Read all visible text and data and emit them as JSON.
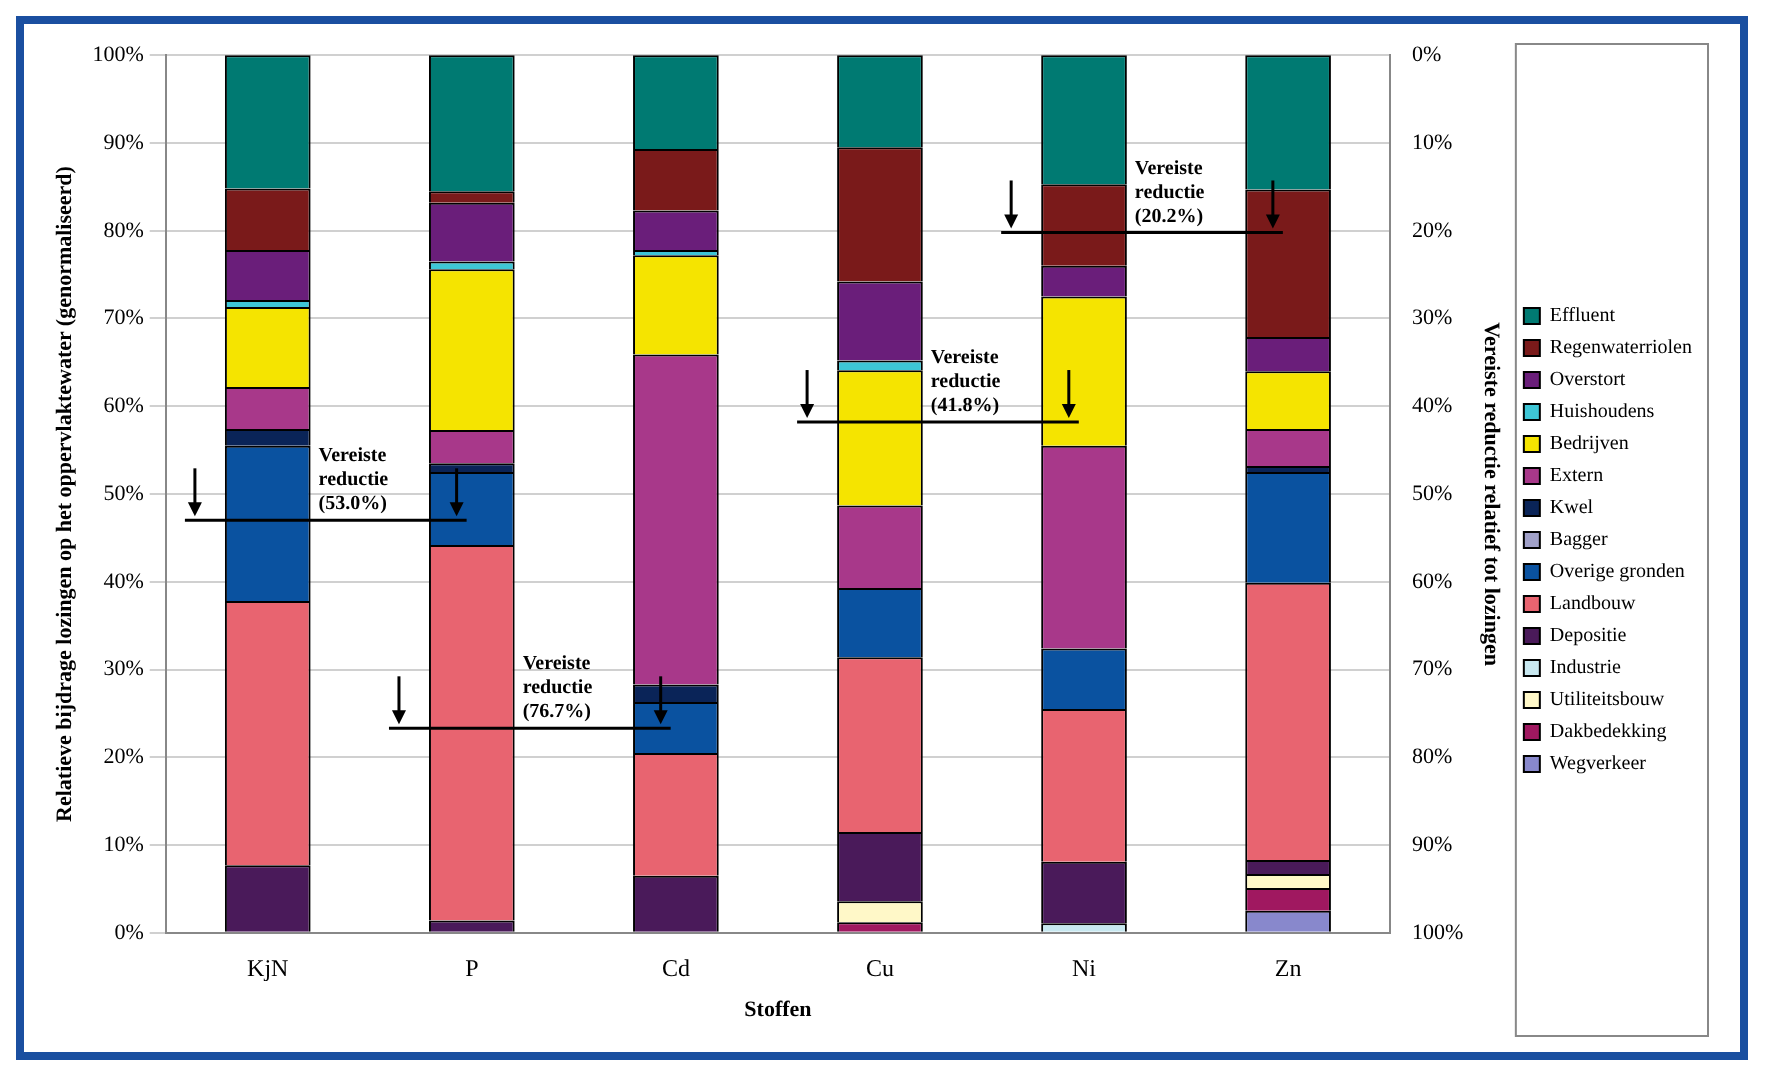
{
  "chart_data": {
    "type": "bar",
    "stacked": true,
    "xlabel": "Stoffen",
    "ylabel": "Relatieve bijdrage lozingen op het oppervlaktewater (genormaliseerd)",
    "y2label": "Vereiste reductie relatief tot lozingen",
    "categories": [
      "KjN",
      "P",
      "Cd",
      "Cu",
      "Ni",
      "Zn"
    ],
    "ylim": [
      0,
      100
    ],
    "yticks": [
      {
        "value": 0,
        "label": "0%"
      },
      {
        "value": 10,
        "label": "10%"
      },
      {
        "value": 20,
        "label": "20%"
      },
      {
        "value": 30,
        "label": "30%"
      },
      {
        "value": 40,
        "label": "40%"
      },
      {
        "value": 50,
        "label": "50%"
      },
      {
        "value": 60,
        "label": "60%"
      },
      {
        "value": 70,
        "label": "70%"
      },
      {
        "value": 80,
        "label": "80%"
      },
      {
        "value": 90,
        "label": "90%"
      },
      {
        "value": 100,
        "label": "100%"
      }
    ],
    "y2lim": [
      100,
      0
    ],
    "y2ticks": [
      {
        "value": 0,
        "label": "0%"
      },
      {
        "value": 10,
        "label": "10%"
      },
      {
        "value": 20,
        "label": "20%"
      },
      {
        "value": 30,
        "label": "30%"
      },
      {
        "value": 40,
        "label": "40%"
      },
      {
        "value": 50,
        "label": "50%"
      },
      {
        "value": 60,
        "label": "60%"
      },
      {
        "value": 70,
        "label": "70%"
      },
      {
        "value": 80,
        "label": "80%"
      },
      {
        "value": 90,
        "label": "90%"
      },
      {
        "value": 100,
        "label": "100%"
      }
    ],
    "grid": "y",
    "legend": "right",
    "series": [
      {
        "name": "Wegverkeer",
        "color": "#8888cc",
        "values": [
          0,
          0,
          0,
          0,
          0,
          2.5
        ]
      },
      {
        "name": "Dakbedekking",
        "color": "#a01860",
        "values": [
          0,
          0,
          0,
          1.2,
          0,
          2.6
        ]
      },
      {
        "name": "Utiliteitsbouw",
        "color": "#fff8c8",
        "values": [
          0,
          0,
          0,
          2.4,
          0,
          1.6
        ]
      },
      {
        "name": "Industrie",
        "color": "#c8e8f0",
        "values": [
          0,
          0,
          0,
          0,
          1.1,
          0
        ]
      },
      {
        "name": "Depositie",
        "color": "#4a1a5a",
        "values": [
          7.7,
          1.4,
          6.5,
          7.9,
          7.0,
          1.6
        ]
      },
      {
        "name": "Landbouw",
        "color": "#e86470",
        "values": [
          30.1,
          42.8,
          14.0,
          19.9,
          17.4,
          31.6
        ]
      },
      {
        "name": "Overige gronden",
        "color": "#0a52a0",
        "values": [
          17.7,
          8.3,
          5.8,
          7.9,
          6.9,
          12.6
        ]
      },
      {
        "name": "Bagger",
        "color": "#a0a0c8",
        "values": [
          0,
          0,
          0,
          0,
          0,
          0
        ]
      },
      {
        "name": "Kwel",
        "color": "#0a2458",
        "values": [
          1.9,
          1.0,
          2.0,
          0,
          0,
          0.7
        ]
      },
      {
        "name": "Extern",
        "color": "#a8388a",
        "values": [
          4.8,
          3.8,
          37.6,
          9.4,
          23.1,
          4.2
        ]
      },
      {
        "name": "Bedrijven",
        "color": "#f5e400",
        "values": [
          9.1,
          18.3,
          11.3,
          15.4,
          17.0,
          6.6
        ]
      },
      {
        "name": "Huishoudens",
        "color": "#3ec6d6",
        "values": [
          0.8,
          0.9,
          0.6,
          1.1,
          0,
          0
        ]
      },
      {
        "name": "Overstort",
        "color": "#6a1e7a",
        "values": [
          5.7,
          6.7,
          4.5,
          9.0,
          3.5,
          3.9
        ]
      },
      {
        "name": "Regenwaterriolen",
        "color": "#7a1a1a",
        "values": [
          7.0,
          1.3,
          7.0,
          15.3,
          9.3,
          16.8
        ]
      },
      {
        "name": "Effluent",
        "color": "#007a72",
        "values": [
          15.2,
          15.5,
          10.7,
          10.5,
          14.7,
          15.3
        ]
      }
    ],
    "ref_lines": [
      {
        "axis": "y2",
        "value": 53.0
      },
      {
        "axis": "y2",
        "value": 76.7
      },
      {
        "axis": "y2",
        "value": 41.8
      },
      {
        "axis": "y2",
        "value": 20.2
      }
    ],
    "annotations": [
      {
        "text": "Vereiste reductie (53.0%)",
        "x": "KjN",
        "y": 47.0
      },
      {
        "text": "Vereiste reductie (76.7%)",
        "x": "P",
        "y": 23.3
      },
      {
        "text": "Vereiste reductie (41.8%)",
        "x": "Cu",
        "y": 58.2
      },
      {
        "text": "Vereiste reductie (20.2%)",
        "x": "Ni",
        "y": 79.8
      }
    ]
  }
}
